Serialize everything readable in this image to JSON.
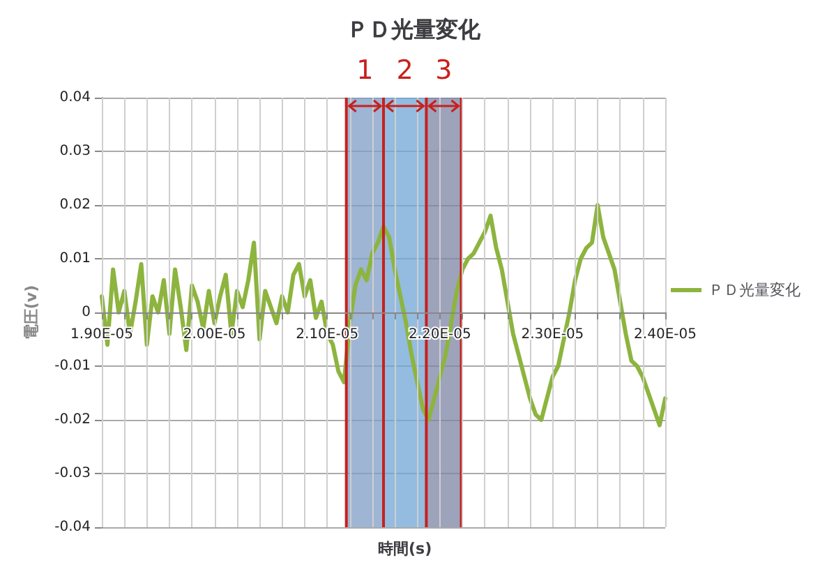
{
  "chart_data": {
    "type": "line",
    "title": "ＰＤ光量変化",
    "xlabel": "時間(s)",
    "ylabel": "電圧(v)",
    "xlim": [
      1.9e-05,
      2.4e-05
    ],
    "xticks": [
      {
        "value": 1.9e-05,
        "label": "1.90E-05"
      },
      {
        "value": 1.92e-05,
        "label": null
      },
      {
        "value": 1.94e-05,
        "label": null
      },
      {
        "value": 1.96e-05,
        "label": null
      },
      {
        "value": 1.98e-05,
        "label": null
      },
      {
        "value": 2e-05,
        "label": "2.00E-05"
      },
      {
        "value": 2.02e-05,
        "label": null
      },
      {
        "value": 2.04e-05,
        "label": null
      },
      {
        "value": 2.06e-05,
        "label": null
      },
      {
        "value": 2.08e-05,
        "label": null
      },
      {
        "value": 2.1e-05,
        "label": "2.10E-05"
      },
      {
        "value": 2.12e-05,
        "label": null
      },
      {
        "value": 2.14e-05,
        "label": null
      },
      {
        "value": 2.16e-05,
        "label": null
      },
      {
        "value": 2.18e-05,
        "label": null
      },
      {
        "value": 2.2e-05,
        "label": "2.20E-05"
      },
      {
        "value": 2.22e-05,
        "label": null
      },
      {
        "value": 2.24e-05,
        "label": null
      },
      {
        "value": 2.26e-05,
        "label": null
      },
      {
        "value": 2.28e-05,
        "label": null
      },
      {
        "value": 2.3e-05,
        "label": "2.30E-05"
      },
      {
        "value": 2.32e-05,
        "label": null
      },
      {
        "value": 2.34e-05,
        "label": null
      },
      {
        "value": 2.36e-05,
        "label": null
      },
      {
        "value": 2.38e-05,
        "label": null
      },
      {
        "value": 2.4e-05,
        "label": "2.40E-05"
      }
    ],
    "ylim": [
      -0.04,
      0.04
    ],
    "yticks": [
      -0.04,
      -0.03,
      -0.02,
      -0.01,
      0,
      0.01,
      0.02,
      0.03,
      0.04
    ],
    "grid": true,
    "legend": "right",
    "marker": "none",
    "line_style": "solid",
    "x": [
      1.9e-05,
      1.905e-05,
      1.91e-05,
      1.915e-05,
      1.92e-05,
      1.925e-05,
      1.93e-05,
      1.935e-05,
      1.94e-05,
      1.945e-05,
      1.95e-05,
      1.955e-05,
      1.96e-05,
      1.965e-05,
      1.97e-05,
      1.975e-05,
      1.98e-05,
      1.985e-05,
      1.99e-05,
      1.995e-05,
      2e-05,
      2.005e-05,
      2.01e-05,
      2.015e-05,
      2.02e-05,
      2.025e-05,
      2.03e-05,
      2.035e-05,
      2.04e-05,
      2.045e-05,
      2.05e-05,
      2.055e-05,
      2.06e-05,
      2.065e-05,
      2.07e-05,
      2.075e-05,
      2.08e-05,
      2.085e-05,
      2.09e-05,
      2.095e-05,
      2.1e-05,
      2.105e-05,
      2.11e-05,
      2.115e-05,
      2.12e-05,
      2.125e-05,
      2.13e-05,
      2.135e-05,
      2.14e-05,
      2.145e-05,
      2.15e-05,
      2.155e-05,
      2.16e-05,
      2.165e-05,
      2.17e-05,
      2.175e-05,
      2.18e-05,
      2.185e-05,
      2.19e-05,
      2.195e-05,
      2.2e-05,
      2.205e-05,
      2.21e-05,
      2.215e-05,
      2.22e-05,
      2.225e-05,
      2.23e-05,
      2.235e-05,
      2.24e-05,
      2.245e-05,
      2.25e-05,
      2.255e-05,
      2.26e-05,
      2.265e-05,
      2.27e-05,
      2.275e-05,
      2.28e-05,
      2.285e-05,
      2.29e-05,
      2.295e-05,
      2.3e-05,
      2.305e-05,
      2.31e-05,
      2.315e-05,
      2.32e-05,
      2.325e-05,
      2.33e-05,
      2.335e-05,
      2.34e-05,
      2.345e-05,
      2.35e-05,
      2.355e-05,
      2.36e-05,
      2.365e-05,
      2.37e-05,
      2.375e-05,
      2.38e-05,
      2.385e-05,
      2.39e-05,
      2.395e-05,
      2.4e-05
    ],
    "series": [
      {
        "name": "ＰＤ光量変化",
        "color": "#8db43e",
        "values": [
          0.003,
          -0.006,
          0.008,
          0.0,
          0.004,
          -0.004,
          0.002,
          0.009,
          -0.006,
          0.003,
          0.0,
          0.006,
          -0.004,
          0.008,
          0.001,
          -0.007,
          0.005,
          0.002,
          -0.003,
          0.004,
          -0.002,
          0.003,
          0.007,
          -0.004,
          0.004,
          0.001,
          0.006,
          0.013,
          -0.005,
          0.004,
          0.001,
          -0.002,
          0.003,
          0.0,
          0.007,
          0.009,
          0.003,
          0.006,
          -0.001,
          0.002,
          -0.004,
          -0.006,
          -0.011,
          -0.013,
          -0.002,
          0.005,
          0.008,
          0.006,
          0.011,
          0.013,
          0.016,
          0.014,
          0.008,
          0.003,
          -0.002,
          -0.008,
          -0.013,
          -0.018,
          -0.02,
          -0.016,
          -0.012,
          -0.008,
          -0.002,
          0.004,
          0.008,
          0.01,
          0.011,
          0.013,
          0.015,
          0.018,
          0.012,
          0.008,
          0.002,
          -0.004,
          -0.008,
          -0.012,
          -0.016,
          -0.019,
          -0.02,
          -0.016,
          -0.012,
          -0.01,
          -0.005,
          0.0,
          0.006,
          0.01,
          0.012,
          0.013,
          0.02,
          0.014,
          0.011,
          0.008,
          0.002,
          -0.004,
          -0.009,
          -0.01,
          -0.012,
          -0.015,
          -0.018,
          -0.021,
          -0.016
        ]
      }
    ],
    "bands": [
      {
        "axis": "x",
        "from": 2.117e-05,
        "to": 2.15e-05,
        "label": "1",
        "color": "#7f9cc6"
      },
      {
        "axis": "x",
        "from": 2.15e-05,
        "to": 2.188e-05,
        "label": "2",
        "color": "#6fa6d6"
      },
      {
        "axis": "x",
        "from": 2.188e-05,
        "to": 2.219e-05,
        "label": "3",
        "color": "#7d84a6"
      }
    ],
    "ref_lines": [
      {
        "axis": "x",
        "value": 2.117e-05,
        "label": null,
        "color": "#c8201c"
      },
      {
        "axis": "x",
        "value": 2.15e-05,
        "label": null,
        "color": "#c8201c"
      },
      {
        "axis": "x",
        "value": 2.188e-05,
        "label": null,
        "color": "#c8201c"
      },
      {
        "axis": "x",
        "value": 2.219e-05,
        "label": null,
        "color": "#c8201c"
      }
    ]
  }
}
